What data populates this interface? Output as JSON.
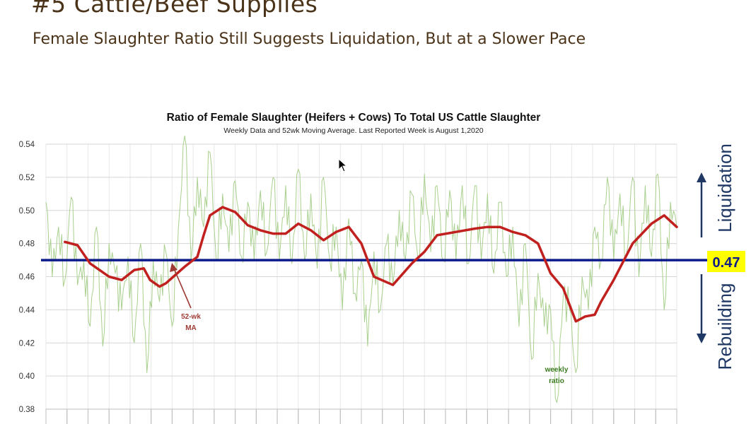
{
  "slide": {
    "title": "#5 Cattle/Beef Supplies",
    "subtitle": "Female Slaughter Ratio Still Suggests Liquidation, But at a Slower Pace"
  },
  "chart_data": {
    "type": "line",
    "title": "Ratio of Female Slaughter (Heifers + Cows) To Total US Cattle Slaughter",
    "subtitle": "Weekly Data and 52wk Moving Average.  Last Reported Week is August 1,2020",
    "ylim": [
      0.38,
      0.54
    ],
    "yticks": [
      "0.38",
      "0.40",
      "0.42",
      "0.44",
      "0.46",
      "0.48",
      "0.50",
      "0.52",
      "0.54"
    ],
    "grid": true,
    "colors": {
      "weekly": "#a9d08e",
      "moving_average": "#c0201e",
      "threshold": "#0d1a8a",
      "annotation_ma": "#9e3b34",
      "annotation_weekly": "#3a7a1e",
      "side_labels": "#1f3864"
    },
    "series": [
      {
        "key": "weekly",
        "description_note": "weekly ratio",
        "x": [
          0,
          0.01,
          0.02,
          0.03,
          0.04,
          0.05,
          0.06,
          0.07,
          0.08,
          0.09,
          0.1,
          0.11,
          0.12,
          0.13,
          0.14,
          0.15,
          0.16,
          0.17,
          0.18,
          0.19,
          0.2,
          0.21,
          0.22,
          0.23,
          0.24,
          0.25,
          0.26,
          0.27,
          0.28,
          0.29,
          0.3,
          0.31,
          0.32,
          0.33,
          0.34,
          0.35,
          0.36,
          0.37,
          0.38,
          0.39,
          0.4,
          0.41,
          0.42,
          0.43,
          0.44,
          0.45,
          0.46,
          0.47,
          0.48,
          0.49,
          0.5,
          0.51,
          0.52,
          0.53,
          0.54,
          0.55,
          0.56,
          0.57,
          0.58,
          0.59,
          0.6,
          0.61,
          0.62,
          0.63,
          0.64,
          0.65,
          0.66,
          0.67,
          0.68,
          0.69,
          0.7,
          0.71,
          0.72,
          0.73,
          0.74,
          0.75,
          0.76,
          0.77,
          0.78,
          0.79,
          0.8,
          0.81,
          0.82,
          0.83,
          0.84,
          0.85,
          0.86,
          0.87,
          0.88,
          0.89,
          0.9,
          0.91,
          0.92,
          0.93,
          0.94,
          0.95,
          0.96,
          0.97,
          0.98,
          0.99,
          1
        ],
        "values": [
          0.505,
          0.46,
          0.49,
          0.458,
          0.508,
          0.455,
          0.47,
          0.43,
          0.49,
          0.418,
          0.48,
          0.462,
          0.44,
          0.472,
          0.42,
          0.48,
          0.402,
          0.47,
          0.445,
          0.475,
          0.43,
          0.49,
          0.545,
          0.47,
          0.52,
          0.49,
          0.535,
          0.47,
          0.51,
          0.475,
          0.518,
          0.472,
          0.505,
          0.47,
          0.512,
          0.475,
          0.52,
          0.47,
          0.515,
          0.468,
          0.525,
          0.47,
          0.51,
          0.465,
          0.52,
          0.47,
          0.49,
          0.44,
          0.495,
          0.45,
          0.47,
          0.418,
          0.475,
          0.44,
          0.48,
          0.455,
          0.5,
          0.47,
          0.51,
          0.47,
          0.522,
          0.475,
          0.515,
          0.47,
          0.512,
          0.47,
          0.515,
          0.468,
          0.515,
          0.47,
          0.51,
          0.462,
          0.505,
          0.46,
          0.49,
          0.43,
          0.48,
          0.41,
          0.462,
          0.43,
          0.44,
          0.384,
          0.448,
          0.44,
          0.402,
          0.46,
          0.44,
          0.49,
          0.47,
          0.52,
          0.47,
          0.51,
          0.472,
          0.52,
          0.46,
          0.515,
          0.472,
          0.522,
          0.44,
          0.505,
          0.49
        ]
      },
      {
        "key": "moving_average",
        "x": [
          0.03,
          0.05,
          0.07,
          0.1,
          0.12,
          0.14,
          0.155,
          0.165,
          0.18,
          0.19,
          0.22,
          0.24,
          0.25,
          0.26,
          0.28,
          0.3,
          0.32,
          0.34,
          0.36,
          0.38,
          0.4,
          0.42,
          0.44,
          0.46,
          0.48,
          0.5,
          0.52,
          0.55,
          0.58,
          0.6,
          0.62,
          0.65,
          0.68,
          0.7,
          0.72,
          0.74,
          0.76,
          0.78,
          0.8,
          0.82,
          0.84,
          0.855,
          0.87,
          0.88,
          0.9,
          0.93,
          0.96,
          0.98,
          1
        ],
        "values": [
          0.481,
          0.479,
          0.468,
          0.46,
          0.458,
          0.464,
          0.465,
          0.458,
          0.454,
          0.456,
          0.466,
          0.472,
          0.485,
          0.497,
          0.502,
          0.499,
          0.491,
          0.488,
          0.486,
          0.486,
          0.492,
          0.488,
          0.482,
          0.487,
          0.49,
          0.48,
          0.46,
          0.455,
          0.468,
          0.475,
          0.485,
          0.487,
          0.489,
          0.49,
          0.49,
          0.487,
          0.485,
          0.48,
          0.462,
          0.453,
          0.433,
          0.436,
          0.437,
          0.445,
          0.458,
          0.48,
          0.492,
          0.497,
          0.49
        ]
      },
      {
        "key": "threshold",
        "value": 0.47,
        "label": "0.47"
      }
    ],
    "annotations": {
      "ma_label_line1": "52-wk",
      "ma_label_line2": "MA",
      "weekly_label_line1": "weekly",
      "weekly_label_line2": "ratio"
    },
    "side_labels": {
      "up": "Liquidation",
      "down": "Rebuilding"
    }
  }
}
